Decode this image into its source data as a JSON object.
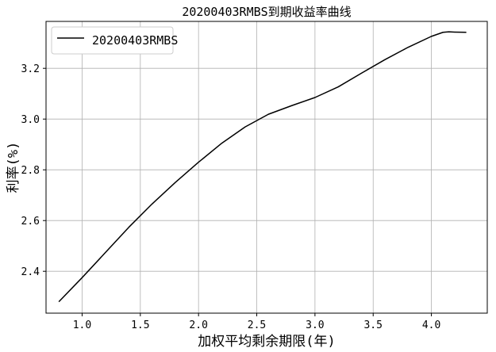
{
  "chart_data": {
    "type": "line",
    "title": "20200403RMBS到期收益率曲线",
    "xlabel": "加权平均剩余期限(年)",
    "ylabel": "利率(%)",
    "xlim": [
      0.69,
      4.48
    ],
    "ylim": [
      2.235,
      3.385
    ],
    "xticks": [
      1.0,
      1.5,
      2.0,
      2.5,
      3.0,
      3.5,
      4.0
    ],
    "xtick_labels": [
      "1.0",
      "1.5",
      "2.0",
      "2.5",
      "3.0",
      "3.5",
      "4.0"
    ],
    "yticks": [
      2.4,
      2.6,
      2.8,
      3.0,
      3.2
    ],
    "ytick_labels": [
      "2.4",
      "2.6",
      "2.8",
      "3.0",
      "3.2"
    ],
    "grid": true,
    "legend_position": "top-left",
    "series": [
      {
        "name": "20200403RMBS",
        "color": "#000000",
        "x": [
          0.8,
          1.0,
          1.2,
          1.4,
          1.6,
          1.8,
          2.0,
          2.2,
          2.4,
          2.6,
          2.8,
          3.0,
          3.2,
          3.4,
          3.6,
          3.8,
          4.0,
          4.1,
          4.15,
          4.2,
          4.3
        ],
        "y": [
          2.28,
          2.375,
          2.474,
          2.573,
          2.665,
          2.75,
          2.83,
          2.905,
          2.969,
          3.019,
          3.053,
          3.085,
          3.127,
          3.181,
          3.234,
          3.283,
          3.326,
          3.342,
          3.344,
          3.343,
          3.342
        ]
      }
    ]
  }
}
